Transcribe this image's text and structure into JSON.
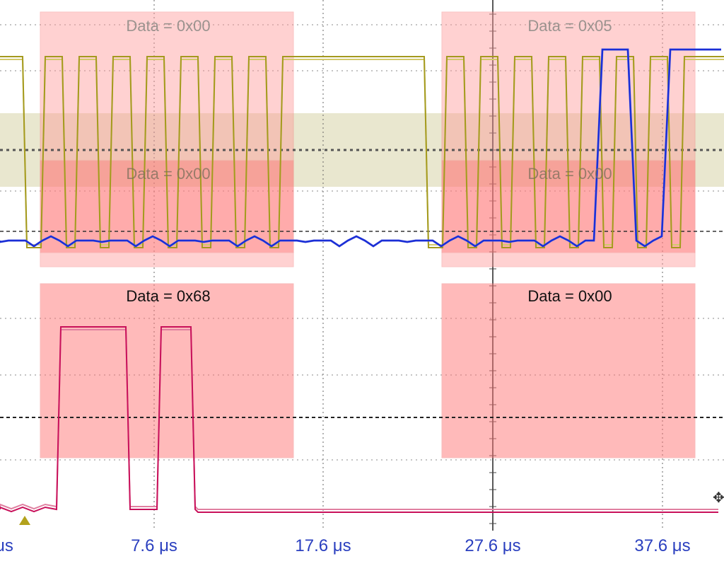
{
  "colors": {
    "yellow_trace": "#a49a1e",
    "yellow_trace_light": "#d3c96c",
    "blue_trace": "#1a2fd6",
    "blue_trace_light": "#8d8ce8",
    "magenta_trace": "#c8105a",
    "magenta_trace_light": "#e07fa0",
    "decode_box_fill": "#ff7777",
    "decode_box_stroke": "#f07a7a",
    "threshold_band": "#d7d3a8",
    "axis_text": "#2a3fbf",
    "grid": "#555555"
  },
  "decodes": {
    "sda_upper_1": "Data = 0x00",
    "sda_upper_2": "Data = 0x05",
    "sda_mid_1": "Data = 0x00",
    "sda_mid_2": "Data = 0x00",
    "bus_lower_1": "Data = 0x68",
    "bus_lower_2": "Data = 0x00"
  },
  "time_axis": {
    "left_partial": "μs",
    "ticks": [
      "7.6 μs",
      "17.6 μs",
      "27.6 μs",
      "37.6 μs"
    ]
  },
  "icons": {
    "trigger": "trigger-marker-icon",
    "cursor": "move-cursor-icon"
  }
}
